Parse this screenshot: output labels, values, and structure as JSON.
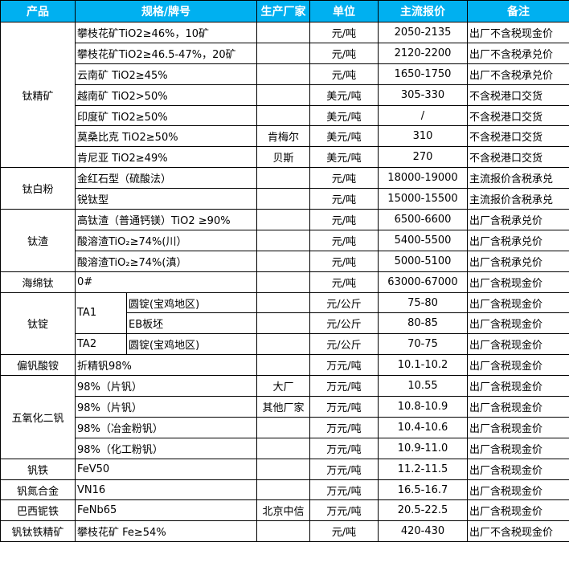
{
  "colors": {
    "header_bg": "#00B0F0",
    "header_text": "#FFFFFF",
    "border": "#000000"
  },
  "headers": [
    "产品",
    "规格/牌号",
    "生产厂家",
    "单位",
    "主流报价",
    "备注"
  ],
  "groups": [
    {
      "product": "钛精矿",
      "rows": [
        {
          "spec": "攀枝花矿TiO2≥46%，10矿",
          "maker": "",
          "unit": "元/吨",
          "price": "2050-2135",
          "note": "出厂不含税现金价"
        },
        {
          "spec": "攀枝花矿TiO2≥46.5-47%，20矿",
          "maker": "",
          "unit": "元/吨",
          "price": "2120-2200",
          "note": "出厂不含税承兑价"
        },
        {
          "spec": "云南矿 TiO2≥45%",
          "maker": "",
          "unit": "元/吨",
          "price": "1650-1750",
          "note": "出厂不含税承兑价"
        },
        {
          "spec": "越南矿 TiO2>50%",
          "maker": "",
          "unit": "美元/吨",
          "price": "305-330",
          "note": "不含税港口交货"
        },
        {
          "spec": "印度矿 TiO2≥50%",
          "maker": "",
          "unit": "美元/吨",
          "price": "/",
          "note": "不含税港口交货"
        },
        {
          "spec": "莫桑比克 TiO2≥50%",
          "maker": "肯梅尔",
          "unit": "美元/吨",
          "price": "310",
          "note": "不含税港口交货"
        },
        {
          "spec": "肯尼亚 TiO2≥49%",
          "maker": "贝斯",
          "unit": "美元/吨",
          "price": "270",
          "note": "不含税港口交货"
        }
      ]
    },
    {
      "product": "钛白粉",
      "rows": [
        {
          "spec": "金红石型（硫酸法）",
          "maker": "",
          "unit": "元/吨",
          "price": "18000-19000",
          "note": "主流报价含税承兑"
        },
        {
          "spec": "锐钛型",
          "maker": "",
          "unit": "元/吨",
          "price": "15000-15500",
          "note": "主流报价含税承兑"
        }
      ]
    },
    {
      "product": "钛渣",
      "rows": [
        {
          "spec": "高钛渣（普通钙镁）TiO2 ≥90%",
          "maker": "",
          "unit": "元/吨",
          "price": "6500-6600",
          "note": "出厂含税承兑价"
        },
        {
          "spec": "酸溶渣TiO₂≥74%(川）",
          "maker": "",
          "unit": "元/吨",
          "price": "5400-5500",
          "note": "出厂含税承兑价"
        },
        {
          "spec": "酸溶渣TiO₂≥74%(滇）",
          "maker": "",
          "unit": "元/吨",
          "price": "5000-5100",
          "note": "出厂含税承兑价"
        }
      ]
    },
    {
      "product": "海绵钛",
      "rows": [
        {
          "spec": "0#",
          "maker": "",
          "unit": "元/吨",
          "price": "63000-67000",
          "note": "出厂含税现金价"
        }
      ]
    },
    {
      "product": "钛锭",
      "rows": [
        {
          "grade": "TA1",
          "spec": "圆锭(宝鸡地区)",
          "maker": "",
          "unit": "元/公斤",
          "price": "75-80",
          "note": "出厂含税现金价"
        },
        {
          "grade": "TA1",
          "spec": "EB板坯",
          "maker": "",
          "unit": "元/公斤",
          "price": "80-85",
          "note": "出厂含税现金价"
        },
        {
          "grade": "TA2",
          "spec": "圆锭(宝鸡地区)",
          "maker": "",
          "unit": "元/公斤",
          "price": "70-75",
          "note": "出厂含税现金价"
        }
      ]
    },
    {
      "product": "偏钒酸铵",
      "rows": [
        {
          "spec": "折精钒98%",
          "maker": "",
          "unit": "万元/吨",
          "price": "10.1-10.2",
          "note": "出厂含税现金价"
        }
      ]
    },
    {
      "product": "五氧化二钒",
      "rows": [
        {
          "spec": "98%（片钒）",
          "maker": "大厂",
          "unit": "万元/吨",
          "price": "10.55",
          "note": "出厂含税现金价"
        },
        {
          "spec": "98%（片钒）",
          "maker": "其他厂家",
          "unit": "万元/吨",
          "price": "10.8-10.9",
          "note": "出厂含税现金价"
        },
        {
          "spec": "98%（冶金粉钒）",
          "maker": "",
          "unit": "万元/吨",
          "price": "10.4-10.6",
          "note": "出厂含税现金价"
        },
        {
          "spec": "98%（化工粉钒）",
          "maker": "",
          "unit": "万元/吨",
          "price": "10.9-11.0",
          "note": "出厂含税现金价"
        }
      ]
    },
    {
      "product": "钒铁",
      "rows": [
        {
          "spec": "FeV50",
          "maker": "",
          "unit": "万元/吨",
          "price": "11.2-11.5",
          "note": "出厂含税现金价"
        }
      ]
    },
    {
      "product": "钒氮合金",
      "rows": [
        {
          "spec": "VN16",
          "maker": "",
          "unit": "万元/吨",
          "price": "16.5-16.7",
          "note": "出厂含税现金价"
        }
      ]
    },
    {
      "product": "巴西铌铁",
      "rows": [
        {
          "spec": "FeNb65",
          "maker": "北京中信",
          "unit": "万元/吨",
          "price": "20.5-22.5",
          "note": "出厂含税现金价"
        }
      ]
    },
    {
      "product": "钒钛铁精矿",
      "rows": [
        {
          "spec": "攀枝花矿 Fe≥54%",
          "maker": "",
          "unit": "元/吨",
          "price": "420-430",
          "note": "出厂不含税现金价"
        }
      ]
    }
  ]
}
